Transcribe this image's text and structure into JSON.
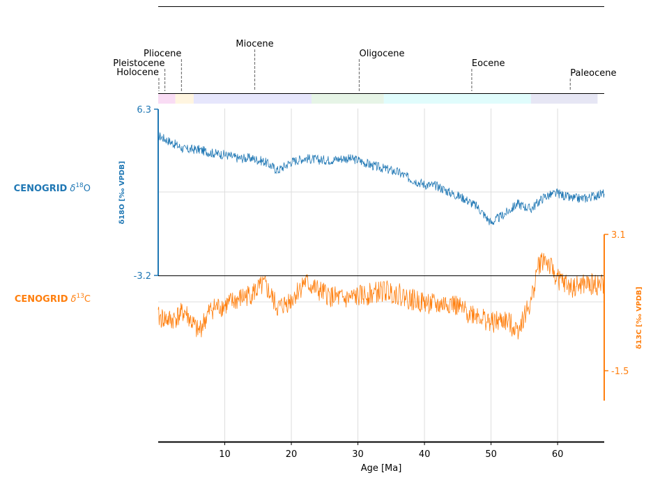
{
  "chart_data": {
    "type": "line",
    "xlabel": "Age [Ma]",
    "xlim": [
      0,
      67
    ],
    "xticks": [
      10,
      20,
      30,
      40,
      50,
      60
    ],
    "grid": true,
    "epochs": [
      {
        "name": "Holocene",
        "start": 0.0,
        "end": 0.0117,
        "color": "#f6e6f6"
      },
      {
        "name": "Pleistocene",
        "start": 0.0117,
        "end": 2.58,
        "color": "#f9dcf4"
      },
      {
        "name": "Pliocene",
        "start": 2.58,
        "end": 5.33,
        "color": "#fff5e0"
      },
      {
        "name": "Miocene",
        "start": 5.33,
        "end": 23.03,
        "color": "#e6e6fc"
      },
      {
        "name": "Oligocene",
        "start": 23.03,
        "end": 33.9,
        "color": "#e6f4e6"
      },
      {
        "name": "Eocene",
        "start": 33.9,
        "end": 56.0,
        "color": "#e0fcfc"
      },
      {
        "name": "Paleocene",
        "start": 56.0,
        "end": 66.0,
        "color": "#e6e6f4"
      }
    ],
    "epoch_labels": [
      {
        "name": "Holocene",
        "marker_age": 0.1
      },
      {
        "name": "Pleistocene",
        "marker_age": 1.0
      },
      {
        "name": "Pliocene",
        "marker_age": 3.5
      },
      {
        "name": "Miocene",
        "marker_age": 14.5
      },
      {
        "name": "Oligocene",
        "marker_age": 30.2
      },
      {
        "name": "Eocene",
        "marker_age": 47.1
      },
      {
        "name": "Paleocene",
        "marker_age": 61.9
      }
    ],
    "series": [
      {
        "name": "CENOGRID δ18O",
        "label_prefix": "CENOGRID",
        "label_symbol": "δ",
        "label_sup": "18",
        "label_suffix": "O",
        "color": "#1f77b4",
        "axis_title": "δ18O [‰ VPDB]",
        "axis_side": "left",
        "ylim": [
          -3.2,
          6.3
        ],
        "yticks": [
          "6.3",
          "-3.2"
        ],
        "ytick_values": [
          6.3,
          -3.2
        ],
        "x": [
          0,
          2,
          4,
          6,
          8,
          10,
          12,
          14,
          16,
          18,
          20,
          22,
          24,
          26,
          28,
          30,
          32,
          34,
          36,
          38,
          40,
          42,
          44,
          46,
          48,
          50,
          52,
          54,
          56,
          58,
          60,
          62,
          64,
          67
        ],
        "values": [
          4.8,
          4.4,
          4.0,
          4.0,
          3.8,
          3.7,
          3.5,
          3.5,
          3.3,
          2.8,
          3.3,
          3.5,
          3.4,
          3.4,
          3.5,
          3.4,
          3.1,
          2.9,
          2.7,
          2.3,
          2.0,
          1.9,
          1.5,
          1.2,
          0.7,
          -0.2,
          0.3,
          0.9,
          0.6,
          1.3,
          1.5,
          1.2,
          1.2,
          1.5
        ]
      },
      {
        "name": "CENOGRID δ13C",
        "label_prefix": "CENOGRID",
        "label_symbol": "δ",
        "label_sup": "13",
        "label_suffix": "C",
        "color": "#ff7f0e",
        "axis_title": "δ13C [‰ VPDB]",
        "axis_side": "right",
        "ylim": [
          -2.8,
          4.5
        ],
        "yticks": [
          "3.1",
          "-1.5"
        ],
        "ytick_values": [
          3.1,
          -1.5
        ],
        "x": [
          0,
          2,
          4,
          6,
          8,
          10,
          12,
          14,
          16,
          18,
          20,
          22,
          24,
          26,
          28,
          30,
          32,
          34,
          36,
          38,
          40,
          42,
          44,
          46,
          48,
          50,
          52,
          54,
          56,
          57,
          58,
          60,
          62,
          64,
          67
        ],
        "values": [
          0.3,
          0.2,
          0.5,
          -0.2,
          0.6,
          0.7,
          0.9,
          1.1,
          1.4,
          0.6,
          0.9,
          1.5,
          1.2,
          1.0,
          0.9,
          1.0,
          1.1,
          1.2,
          1.1,
          0.9,
          0.8,
          0.7,
          0.8,
          0.5,
          0.4,
          0.1,
          0.2,
          -0.1,
          0.8,
          2.0,
          2.3,
          1.6,
          1.3,
          1.4,
          1.4
        ]
      }
    ]
  }
}
